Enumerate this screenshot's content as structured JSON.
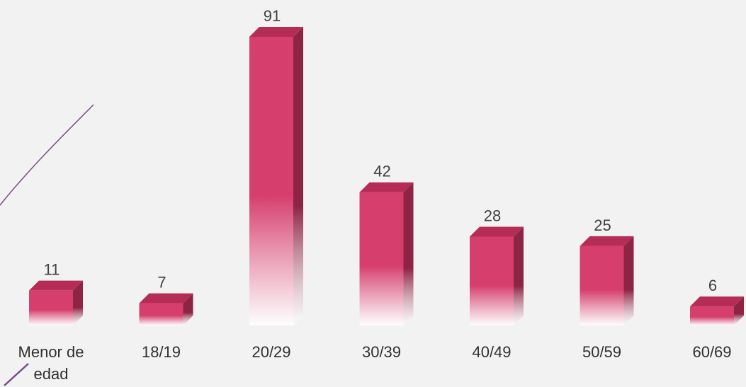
{
  "chart_data": {
    "type": "bar",
    "style": "3d-column",
    "categories": [
      "Menor de edad",
      "18/19",
      "20/29",
      "30/39",
      "40/49",
      "50/59",
      "60/69"
    ],
    "values": [
      11,
      7,
      91,
      42,
      28,
      25,
      6
    ],
    "title": "",
    "xlabel": "",
    "ylabel": "",
    "ylim": [
      0,
      91
    ],
    "grid": false,
    "legend": "none",
    "bar_color": "#d63e6e",
    "bar_side_color": "#8e2444",
    "bar_top_color": "#b52d57"
  }
}
